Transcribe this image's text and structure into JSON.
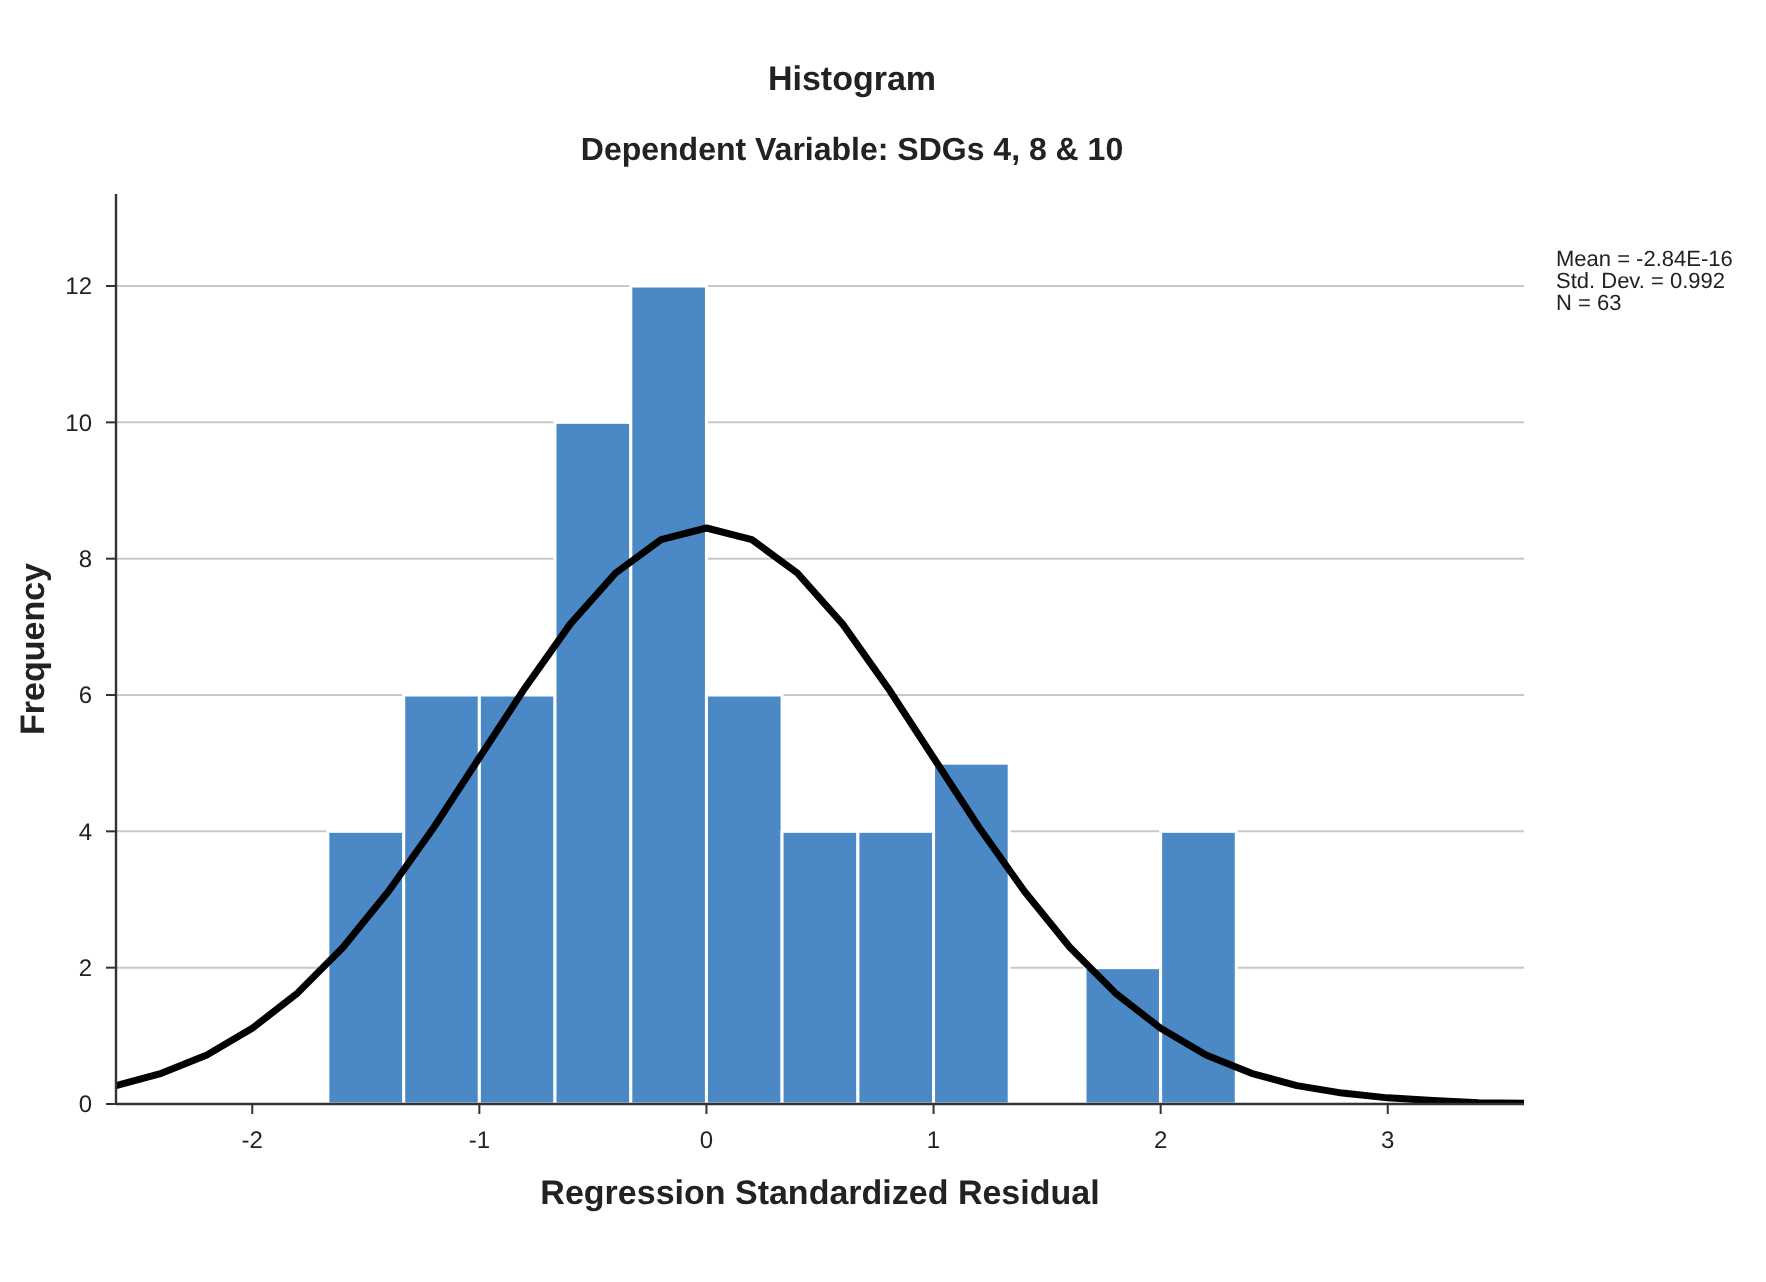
{
  "chart_data": {
    "type": "histogram",
    "title": "Histogram",
    "subtitle": "Dependent Variable: SDGs 4, 8 & 10",
    "xlabel": "Regression Standardized Residual",
    "ylabel": "Frequency",
    "bins": [
      -1.667,
      -1.333,
      -1,
      -0.667,
      -0.333,
      0,
      0.333,
      0.667,
      1,
      1.333,
      1.667,
      2,
      2.333
    ],
    "values": [
      4,
      6,
      6,
      10,
      12,
      6,
      4,
      4,
      5,
      0,
      2,
      4
    ],
    "color": "#4a88c6",
    "series": [
      {
        "type": "line",
        "color": "#000000",
        "x": [
          -2.6,
          -2.4,
          -2.2,
          -2,
          -1.8,
          -1.6,
          -1.4,
          -1.2,
          -1,
          -0.8,
          -0.6,
          -0.4,
          -0.2,
          0,
          0.2,
          0.4,
          0.6,
          0.8,
          1,
          1.2,
          1.4,
          1.6,
          1.8,
          2,
          2.2,
          2.4,
          2.6,
          2.8,
          3,
          3.2,
          3.4,
          3.6
        ],
        "values": [
          0.27,
          0.45,
          0.72,
          1.11,
          1.63,
          2.3,
          3.12,
          4.06,
          5.08,
          6.1,
          7.04,
          7.79,
          8.28,
          8.45,
          8.28,
          7.79,
          7.04,
          6.1,
          5.08,
          4.06,
          3.12,
          2.3,
          1.63,
          1.11,
          0.72,
          0.45,
          0.27,
          0.16,
          0.09,
          0.05,
          0.02,
          0.01
        ]
      }
    ],
    "annotations": [
      "Mean = -2.84E-16",
      "Std. Dev. = 0.992",
      "N = 63"
    ],
    "xlim": [
      -2.6,
      3.6
    ],
    "xticks": [
      -2,
      -1,
      0,
      1,
      2,
      3
    ],
    "ylim": [
      0,
      13.35
    ],
    "yticks": [
      0,
      2,
      4,
      6,
      8,
      10,
      12
    ],
    "grid": "y"
  }
}
